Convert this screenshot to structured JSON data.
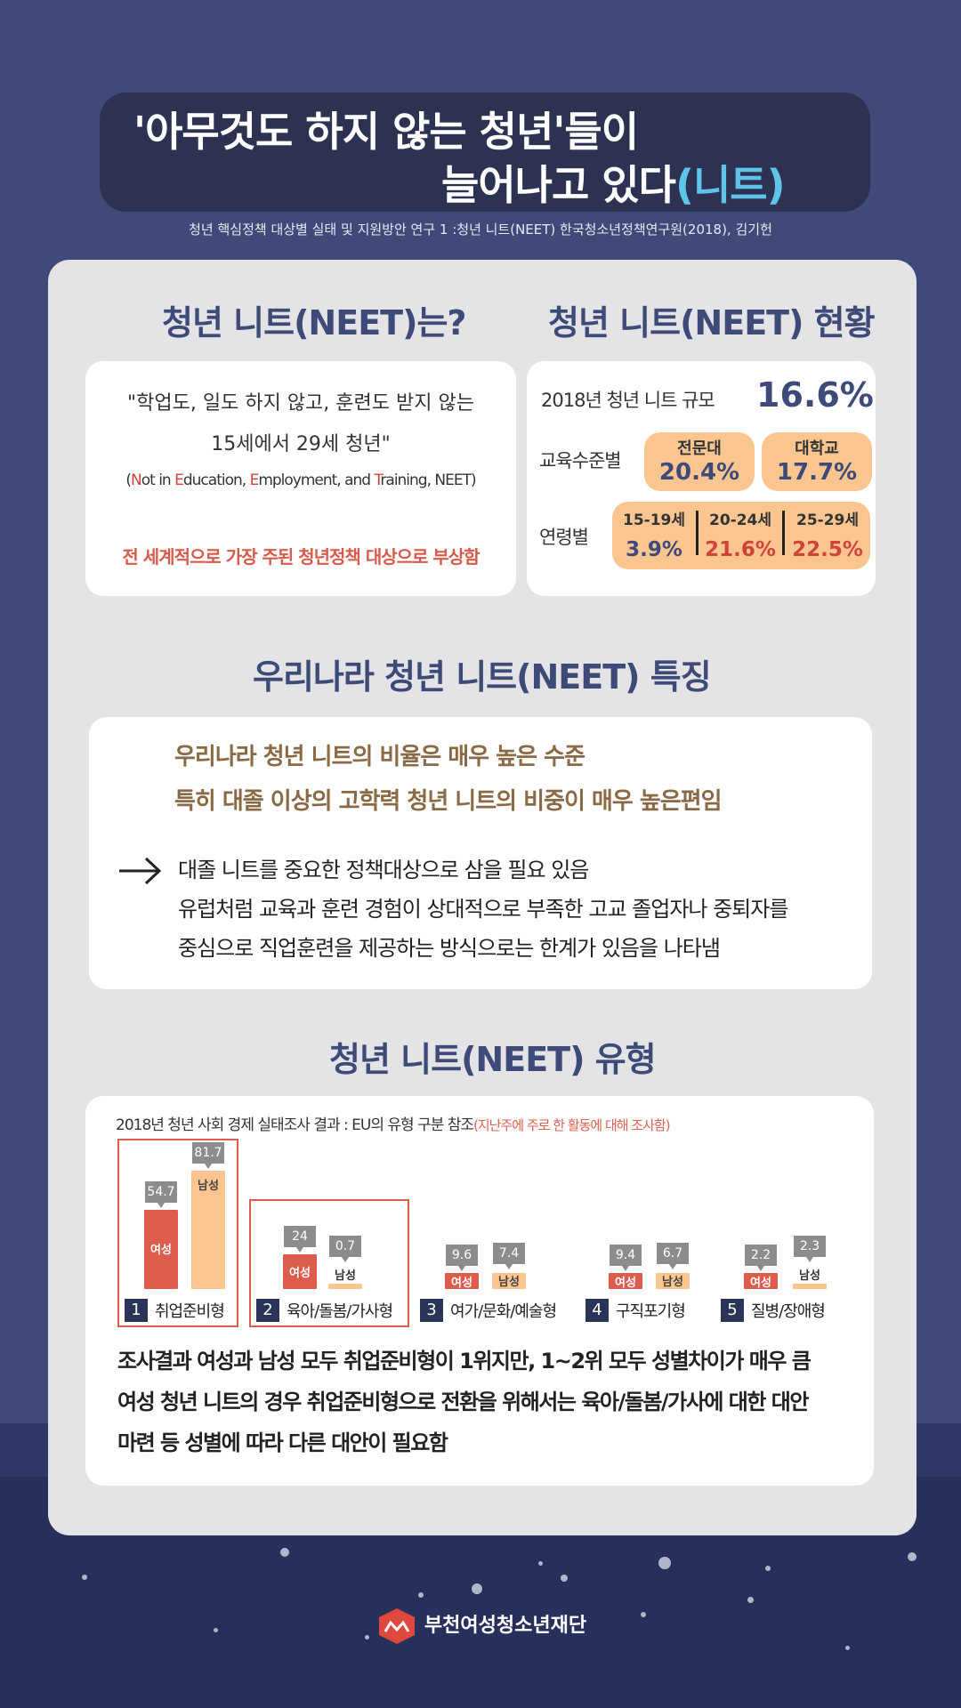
{
  "header": {
    "title_line1": "'아무것도 하지 않는 청년'들이",
    "title_line2": "늘어나고 있다",
    "title_neet": "(니트)",
    "source": "청년 핵심정책 대상별 실태 및 지원방안 연구 1 :청년 니트(NEET) 한국청소년정책연구원(2018), 김기헌"
  },
  "definition": {
    "title": "청년 니트(NEET)는?",
    "quote_line1": "\"학업도,  일도 하지 않고,  훈련도 받지 않는",
    "quote_line2": "15세에서 29세 청년\"",
    "sub_open": "(",
    "sub_n": "N",
    "sub_ot_in": "ot in ",
    "sub_e1": "E",
    "sub_ducation": "ducation, ",
    "sub_e2": "E",
    "sub_mployment": "mployment, and ",
    "sub_t": "T",
    "sub_raining": "raining,  NEET)",
    "highlight": "전 세계적으로 가장 주된  청년정책 대상으로 부상함"
  },
  "status": {
    "title": "청년 니트(NEET) 현황",
    "scale_label": "2018년 청년 니트 규모",
    "scale_value": "16.6%",
    "edu_label": "교육수준별",
    "edu": [
      {
        "label": "전문대",
        "value": "20.4%"
      },
      {
        "label": "대학교",
        "value": "17.7%"
      }
    ],
    "age_label": "연령별",
    "age": [
      {
        "label": "15-19세",
        "value": "3.9%",
        "color": "#3e4a78"
      },
      {
        "label": "20-24세",
        "value": "21.6%",
        "color": "#d0433a"
      },
      {
        "label": "25-29세",
        "value": "22.5%",
        "color": "#d0433a"
      }
    ]
  },
  "features": {
    "title": "우리나라 청년 니트(NEET)  특징",
    "bold1": "우리나라 청년 니트의 비율은 매우 높은 수준",
    "bold2": "특히 대졸 이상의 고학력 청년 니트의 비중이 매우 높은편임",
    "text1": "대졸 니트를 중요한 정책대상으로 삼을 필요 있음",
    "text2": "유럽처럼 교육과 훈련 경험이 상대적으로 부족한 고교 졸업자나 중퇴자를",
    "text3": "중심으로 직업훈련을 제공하는 방식으로는 한계가 있음을 나타냄"
  },
  "types": {
    "title": "청년 니트(NEET) 유형",
    "caption": "2018년 청년 사회  경제 실태조사 결과 :  EU의 유형 구분 참조",
    "caption_note": "(지난주에  주로  한  활동에  대해   조사함)",
    "summary1": "조사결과 여성과 남성 모두 취업준비형이 1위지만, 1~2위 모두 성별차이가 매우 큼",
    "summary2": "여성 청년 니트의 경우 취업준비형으로 전환을 위해서는 육아/돌봄/가사에 대한 대안",
    "summary3": "마련 등 성별에 따라 다른 대안이 필요함"
  },
  "chart_data": {
    "type": "bar",
    "categories": [
      "취업준비형",
      "육아/돌봄/가사형",
      "여가/문화/예술형",
      "구직포기형",
      "질병/장애형"
    ],
    "category_numbers": [
      "1",
      "2",
      "3",
      "4",
      "5"
    ],
    "series": [
      {
        "name": "여성",
        "values": [
          54.7,
          24,
          9.6,
          9.4,
          2.2
        ],
        "color": "#dc5c4d"
      },
      {
        "name": "남성",
        "values": [
          81.7,
          0.7,
          7.4,
          6.7,
          2.3
        ],
        "color": "#fcc58f"
      }
    ],
    "value_labels": {
      "female": [
        "54.7",
        "24",
        "9.6",
        "9.4",
        "2.2"
      ],
      "male": [
        "81.7",
        "0.7",
        "7.4",
        "6.7",
        "2.3"
      ]
    },
    "highlighted_categories": [
      0,
      1
    ]
  },
  "footer": {
    "org": "부천여성청소년재단"
  }
}
